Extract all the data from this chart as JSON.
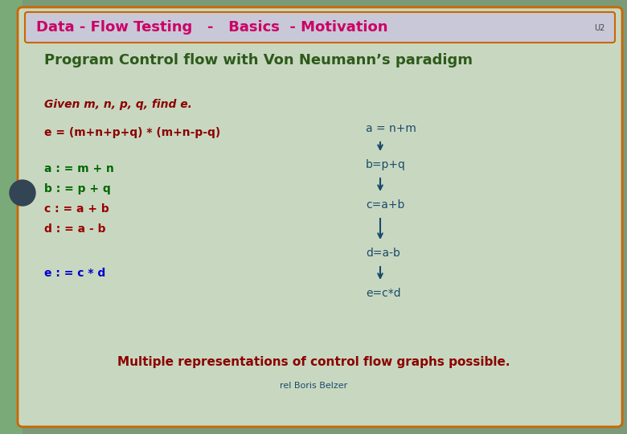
{
  "title_bar_text": "Data - Flow Testing   -   Basics  - Motivation",
  "u2_text": "U2",
  "title_bar_bg": "#c8c8d8",
  "title_bar_border": "#cc6600",
  "title_text_color": "#cc0066",
  "main_bg": "#c8d8c0",
  "main_border": "#cc6600",
  "slide_bg": "#7a9a78",
  "subtitle": "Program Control flow with Von Neumann’s paradigm",
  "subtitle_color": "#2d5a1b",
  "given_text": "Given m, n, p, q, find e.",
  "given_color": "#8b0000",
  "equation_text": "e = (m+n+p+q) * (m+n-p-q)",
  "equation_color": "#8b0000",
  "left_lines": [
    {
      "text": "a : = m + n",
      "color": "#006600"
    },
    {
      "text": "b : = p + q",
      "color": "#006600"
    },
    {
      "text": "c : = a + b",
      "color": "#990000"
    },
    {
      "text": "d : = a - b",
      "color": "#990000"
    }
  ],
  "left_e_line": {
    "text": "e : = c * d",
    "color": "#0000cc"
  },
  "flow_nodes": [
    "a = n+m",
    "b=p+q",
    "c=a+b",
    "d=a-b",
    "e=c*d"
  ],
  "flow_color": "#1a4a6b",
  "arrow_color": "#1a4a6b",
  "bottom_text": "Multiple representations of control flow graphs possible.",
  "bottom_color": "#8b0000",
  "bottom_sub": "rel Boris Belzer",
  "bottom_sub_color": "#1a4a6b",
  "left_tab_color": "#7aaa78",
  "circle_color": "#334455"
}
